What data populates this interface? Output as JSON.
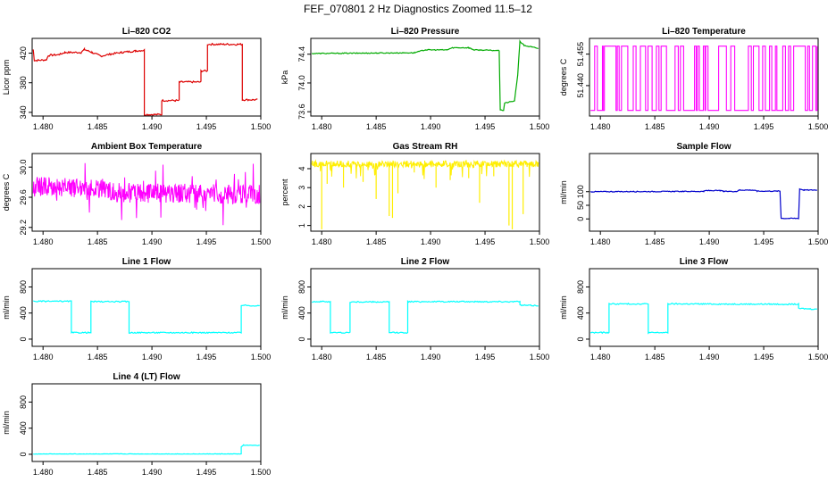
{
  "page_title": "FEF_070801 2 Hz Diagnostics Zoomed 11.5–12",
  "chart_data": [
    {
      "id": "co2",
      "type": "line",
      "title": "Li–820 CO2",
      "ylabel": "Licor ppm",
      "color": "#dd0000",
      "xlim": [
        1.479,
        1.5
      ],
      "ylim": [
        335,
        440
      ],
      "xticks": [
        "1.480",
        "1.485",
        "1.490",
        "1.495",
        "1.500"
      ],
      "yticks": [
        {
          "v": 340,
          "label": "340"
        },
        {
          "v": 380,
          "label": "380"
        },
        {
          "v": 420,
          "label": "420"
        }
      ],
      "noise": 1.2,
      "series": [
        [
          1.4791,
          425
        ],
        [
          1.4792,
          410
        ],
        [
          1.4803,
          411
        ],
        [
          1.4805,
          417
        ],
        [
          1.4815,
          418
        ],
        [
          1.482,
          421
        ],
        [
          1.4835,
          421
        ],
        [
          1.4838,
          425
        ],
        [
          1.4845,
          421
        ],
        [
          1.4853,
          416
        ],
        [
          1.4863,
          419
        ],
        [
          1.4872,
          421
        ],
        [
          1.4885,
          423
        ],
        [
          1.4893,
          424
        ],
        [
          1.4893,
          337
        ],
        [
          1.4909,
          337
        ],
        [
          1.4909,
          356
        ],
        [
          1.4925,
          356
        ],
        [
          1.4925,
          381
        ],
        [
          1.4945,
          381
        ],
        [
          1.4945,
          396
        ],
        [
          1.4951,
          396
        ],
        [
          1.4951,
          432
        ],
        [
          1.4983,
          432
        ],
        [
          1.4983,
          357
        ],
        [
          1.4997,
          357
        ]
      ]
    },
    {
      "id": "pres",
      "type": "line",
      "title": "Li–820 Pressure",
      "ylabel": "kPa",
      "color": "#00aa00",
      "xlim": [
        1.479,
        1.5
      ],
      "ylim": [
        73.54,
        74.62
      ],
      "xticks": [
        "1.480",
        "1.485",
        "1.490",
        "1.495",
        "1.500"
      ],
      "yticks": [
        {
          "v": 73.6,
          "label": "73.6"
        },
        {
          "v": 74.0,
          "label": "74.0"
        },
        {
          "v": 74.4,
          "label": "74.4"
        }
      ],
      "noise": 0.006,
      "series": [
        [
          1.4791,
          74.41
        ],
        [
          1.4885,
          74.42
        ],
        [
          1.4895,
          74.46
        ],
        [
          1.4915,
          74.46
        ],
        [
          1.492,
          74.49
        ],
        [
          1.4935,
          74.49
        ],
        [
          1.494,
          74.46
        ],
        [
          1.4963,
          74.45
        ],
        [
          1.4964,
          73.62
        ],
        [
          1.4967,
          73.62
        ],
        [
          1.4968,
          73.72
        ],
        [
          1.4977,
          73.75
        ],
        [
          1.498,
          74.1
        ],
        [
          1.4982,
          74.58
        ],
        [
          1.4986,
          74.52
        ],
        [
          1.4993,
          74.5
        ],
        [
          1.4999,
          74.48
        ]
      ]
    },
    {
      "id": "temp",
      "type": "toggle",
      "title": "Li–820 Temperature",
      "ylabel": "degrees C",
      "color": "#ff00ff",
      "xlim": [
        1.479,
        1.5
      ],
      "ylim": [
        51.4255,
        51.4625
      ],
      "xticks": [
        "1.480",
        "1.485",
        "1.490",
        "1.495",
        "1.500"
      ],
      "yticks": [
        {
          "v": 51.44,
          "label": "51.440"
        },
        {
          "v": 51.455,
          "label": "51.455"
        }
      ],
      "low": 51.4282,
      "high": 51.4588
    },
    {
      "id": "abox",
      "type": "band",
      "title": "Ambient Box Temperature",
      "ylabel": "degrees C",
      "color": "#ff00ff",
      "xlim": [
        1.479,
        1.5
      ],
      "ylim": [
        29.15,
        30.18
      ],
      "xticks": [
        "1.480",
        "1.485",
        "1.490",
        "1.495",
        "1.500"
      ],
      "yticks": [
        {
          "v": 29.2,
          "label": "29.2"
        },
        {
          "v": 29.6,
          "label": "29.6"
        },
        {
          "v": 30.0,
          "label": "30.0"
        }
      ],
      "center": [
        [
          1.4791,
          29.74
        ],
        [
          1.4855,
          29.72
        ],
        [
          1.487,
          29.66
        ],
        [
          1.4999,
          29.64
        ]
      ],
      "amp": 0.13
    },
    {
      "id": "rh",
      "type": "spikes",
      "title": "Gas Stream RH",
      "ylabel": "percent",
      "color": "#ffee00",
      "xlim": [
        1.479,
        1.5
      ],
      "ylim": [
        0.7,
        4.8
      ],
      "xticks": [
        "1.480",
        "1.485",
        "1.490",
        "1.495",
        "1.500"
      ],
      "yticks": [
        {
          "v": 1,
          "label": "1"
        },
        {
          "v": 2,
          "label": "2"
        },
        {
          "v": 3,
          "label": "3"
        },
        {
          "v": 4,
          "label": "4"
        }
      ],
      "base": 4.25,
      "amp": 0.18,
      "dips": [
        1.48,
        1.4805,
        1.482,
        1.4838,
        1.485,
        1.4862,
        1.4865,
        1.487,
        1.4885,
        1.4905,
        1.4918,
        1.4935,
        1.4945,
        1.4958,
        1.4972,
        1.4975,
        1.4985
      ],
      "dipvals": [
        0.8,
        3.2,
        3.0,
        3.3,
        2.4,
        1.5,
        1.4,
        2.7,
        3.8,
        3.0,
        3.4,
        3.5,
        2.2,
        3.6,
        1.0,
        0.8,
        1.6
      ]
    },
    {
      "id": "sflow",
      "type": "line",
      "title": "Sample Flow",
      "ylabel": "ml/min",
      "color": "#0000cc",
      "xlim": [
        1.479,
        1.5
      ],
      "ylim": [
        -45,
        240
      ],
      "xticks": [
        "1.480",
        "1.485",
        "1.490",
        "1.495",
        "1.500"
      ],
      "yticks": [
        {
          "v": 0,
          "label": "0"
        },
        {
          "v": 50,
          "label": "50"
        },
        {
          "v": 100,
          "label": "100"
        }
      ],
      "noise": 1.5,
      "series": [
        [
          1.4791,
          100
        ],
        [
          1.4895,
          101
        ],
        [
          1.4897,
          104
        ],
        [
          1.491,
          104
        ],
        [
          1.4913,
          101
        ],
        [
          1.4925,
          101
        ],
        [
          1.4928,
          106
        ],
        [
          1.494,
          106
        ],
        [
          1.4944,
          102
        ],
        [
          1.4965,
          102
        ],
        [
          1.4966,
          2
        ],
        [
          1.4982,
          2
        ],
        [
          1.4983,
          110
        ],
        [
          1.4987,
          106
        ],
        [
          1.4999,
          106
        ]
      ]
    },
    {
      "id": "l1",
      "type": "line",
      "title": "Line 1 Flow",
      "ylabel": "ml/min",
      "color": "#00ffff",
      "xlim": [
        1.479,
        1.5
      ],
      "ylim": [
        -110,
        1080
      ],
      "xticks": [
        "1.480",
        "1.485",
        "1.490",
        "1.495",
        "1.500"
      ],
      "yticks": [
        {
          "v": 0,
          "label": "0"
        },
        {
          "v": 400,
          "label": "400"
        },
        {
          "v": 800,
          "label": "800"
        }
      ],
      "noise": 9,
      "series": [
        [
          1.4791,
          580
        ],
        [
          1.4826,
          580
        ],
        [
          1.4826,
          100
        ],
        [
          1.4844,
          100
        ],
        [
          1.4844,
          575
        ],
        [
          1.4879,
          575
        ],
        [
          1.4879,
          100
        ],
        [
          1.4982,
          100
        ],
        [
          1.4982,
          520
        ],
        [
          1.4999,
          510
        ]
      ]
    },
    {
      "id": "l2",
      "type": "line",
      "title": "Line 2 Flow",
      "ylabel": "ml/min",
      "color": "#00ffff",
      "xlim": [
        1.479,
        1.5
      ],
      "ylim": [
        -110,
        1080
      ],
      "xticks": [
        "1.480",
        "1.485",
        "1.490",
        "1.495",
        "1.500"
      ],
      "yticks": [
        {
          "v": 0,
          "label": "0"
        },
        {
          "v": 400,
          "label": "400"
        },
        {
          "v": 800,
          "label": "800"
        }
      ],
      "noise": 9,
      "series": [
        [
          1.4791,
          575
        ],
        [
          1.4808,
          575
        ],
        [
          1.4808,
          100
        ],
        [
          1.4826,
          100
        ],
        [
          1.4826,
          570
        ],
        [
          1.4862,
          570
        ],
        [
          1.4862,
          100
        ],
        [
          1.4879,
          100
        ],
        [
          1.4879,
          575
        ],
        [
          1.4982,
          575
        ],
        [
          1.4982,
          520
        ],
        [
          1.4999,
          515
        ]
      ]
    },
    {
      "id": "l3",
      "type": "line",
      "title": "Line 3 Flow",
      "ylabel": "ml/min",
      "color": "#00ffff",
      "xlim": [
        1.479,
        1.5
      ],
      "ylim": [
        -110,
        1080
      ],
      "xticks": [
        "1.480",
        "1.485",
        "1.490",
        "1.495",
        "1.500"
      ],
      "yticks": [
        {
          "v": 0,
          "label": "0"
        },
        {
          "v": 400,
          "label": "400"
        },
        {
          "v": 800,
          "label": "800"
        }
      ],
      "noise": 9,
      "series": [
        [
          1.4791,
          100
        ],
        [
          1.4808,
          100
        ],
        [
          1.4808,
          540
        ],
        [
          1.4844,
          540
        ],
        [
          1.4844,
          100
        ],
        [
          1.4862,
          100
        ],
        [
          1.4862,
          540
        ],
        [
          1.4982,
          535
        ],
        [
          1.4982,
          470
        ],
        [
          1.4999,
          460
        ]
      ]
    },
    {
      "id": "l4",
      "type": "line",
      "title": "Line 4 (LT) Flow",
      "ylabel": "ml/min",
      "color": "#00ffff",
      "xlim": [
        1.479,
        1.5
      ],
      "ylim": [
        -110,
        1080
      ],
      "xticks": [
        "1.480",
        "1.485",
        "1.490",
        "1.495",
        "1.500"
      ],
      "yticks": [
        {
          "v": 0,
          "label": "0"
        },
        {
          "v": 400,
          "label": "400"
        },
        {
          "v": 800,
          "label": "800"
        }
      ],
      "noise": 3,
      "series": [
        [
          1.4791,
          5
        ],
        [
          1.4982,
          5
        ],
        [
          1.4982,
          115
        ],
        [
          1.4984,
          140
        ],
        [
          1.4999,
          135
        ]
      ]
    }
  ]
}
